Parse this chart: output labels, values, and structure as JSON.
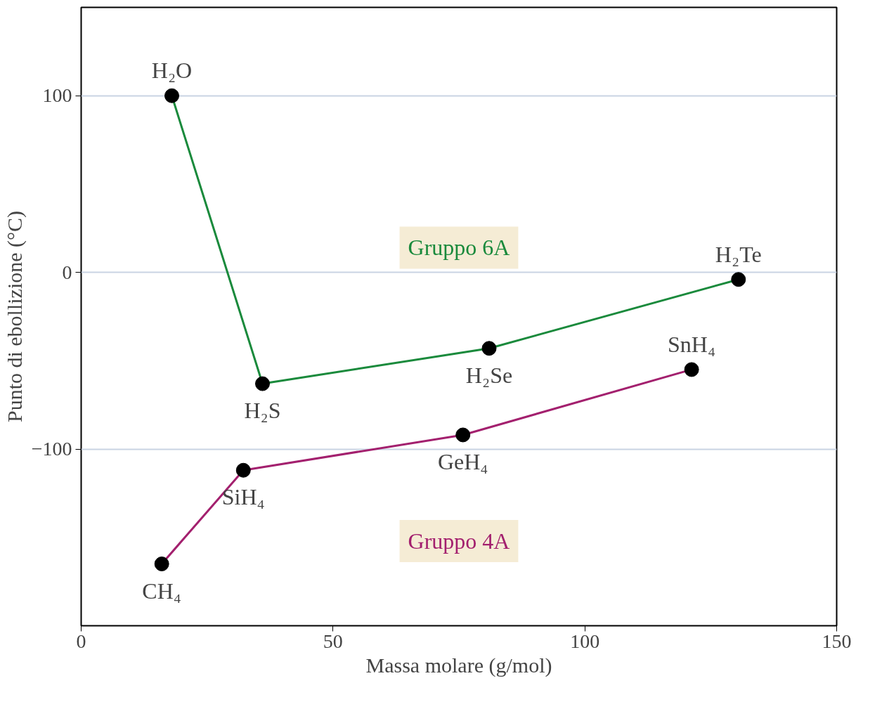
{
  "chart_data": {
    "type": "line",
    "xlabel": "Massa molare (g/mol)",
    "ylabel": "Punto di ebollizione (°C)",
    "xlim": [
      0,
      150
    ],
    "xticks": [
      0,
      50,
      100,
      150
    ],
    "ylim": [
      -200,
      150
    ],
    "yticks": [
      -100,
      0,
      100
    ],
    "grid": "y",
    "marker": "circle",
    "line_style": "solid",
    "legend": false,
    "series": [
      {
        "name": "Gruppo 6A",
        "color": "#1a8a3c",
        "x": [
          18,
          36,
          81,
          130.5
        ],
        "values": [
          100,
          -63,
          -43,
          -4
        ]
      },
      {
        "name": "Gruppo 4A",
        "color": "#a3206e",
        "x": [
          16,
          32.2,
          75.8,
          121.2
        ],
        "values": [
          -165,
          -112,
          -92,
          -55
        ]
      }
    ],
    "annotations": [
      {
        "text": "H₂O",
        "x": 18,
        "y": 100
      },
      {
        "text": "H₂S",
        "x": 36,
        "y": -63
      },
      {
        "text": "H₂Se",
        "x": 81,
        "y": -43
      },
      {
        "text": "H₂Te",
        "x": 130.5,
        "y": -4
      },
      {
        "text": "CH₄",
        "x": 16,
        "y": -165
      },
      {
        "text": "SiH₄",
        "x": 32.2,
        "y": -112
      },
      {
        "text": "GeH₄",
        "x": 75.8,
        "y": -92
      },
      {
        "text": "SnH₄",
        "x": 121.2,
        "y": -55
      }
    ]
  }
}
